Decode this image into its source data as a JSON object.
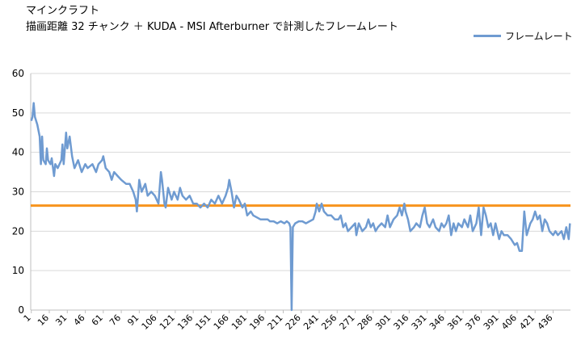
{
  "chart_data": {
    "type": "line",
    "title_lines": [
      "マインクラフト",
      "描画距離 32 チャンク ＋ KUDA - MSI Afterburner で計測したフレームレート"
    ],
    "xlabel": "",
    "ylabel": "",
    "ylim": [
      0,
      60
    ],
    "yticks": [
      0,
      10,
      20,
      30,
      40,
      50,
      60
    ],
    "xticks": [
      1,
      16,
      31,
      46,
      61,
      76,
      91,
      106,
      121,
      136,
      151,
      166,
      181,
      196,
      211,
      226,
      241,
      256,
      271,
      286,
      301,
      316,
      331,
      346,
      361,
      376,
      391,
      406,
      421,
      436
    ],
    "x_count": 450,
    "legend_position": "top-right",
    "colors": {
      "series": "#6f9bd1",
      "reference": "#f7941d",
      "gridline": "#d9d9d9",
      "axis": "#bfbfbf"
    },
    "series": [
      {
        "name": "フレームレート",
        "points": [
          [
            1,
            48
          ],
          [
            2,
            49
          ],
          [
            3,
            52.5
          ],
          [
            4,
            49
          ],
          [
            6,
            47
          ],
          [
            8,
            44
          ],
          [
            9,
            37
          ],
          [
            10,
            44
          ],
          [
            11,
            38
          ],
          [
            13,
            37
          ],
          [
            14,
            41
          ],
          [
            15,
            38
          ],
          [
            17,
            37
          ],
          [
            18,
            38.5
          ],
          [
            20,
            34
          ],
          [
            21,
            37
          ],
          [
            23,
            36
          ],
          [
            26,
            38
          ],
          [
            27,
            42
          ],
          [
            28,
            37
          ],
          [
            30,
            45
          ],
          [
            31,
            41
          ],
          [
            33,
            44
          ],
          [
            35,
            39
          ],
          [
            37,
            36
          ],
          [
            40,
            38
          ],
          [
            43,
            35
          ],
          [
            46,
            37
          ],
          [
            48,
            36
          ],
          [
            52,
            37
          ],
          [
            55,
            35
          ],
          [
            57,
            37
          ],
          [
            60,
            38
          ],
          [
            61,
            39
          ],
          [
            63,
            36
          ],
          [
            66,
            35
          ],
          [
            68,
            33
          ],
          [
            70,
            35
          ],
          [
            73,
            34
          ],
          [
            76,
            33
          ],
          [
            80,
            32
          ],
          [
            83,
            32
          ],
          [
            86,
            30
          ],
          [
            88,
            28
          ],
          [
            89,
            25
          ],
          [
            91,
            33
          ],
          [
            93,
            30
          ],
          [
            96,
            32
          ],
          [
            98,
            29
          ],
          [
            101,
            30
          ],
          [
            104,
            29
          ],
          [
            107,
            27
          ],
          [
            109,
            35
          ],
          [
            110,
            33
          ],
          [
            112,
            27
          ],
          [
            113,
            26
          ],
          [
            115,
            31
          ],
          [
            118,
            28
          ],
          [
            120,
            30
          ],
          [
            123,
            28
          ],
          [
            125,
            31
          ],
          [
            127,
            29
          ],
          [
            130,
            28
          ],
          [
            133,
            29
          ],
          [
            136,
            27
          ],
          [
            139,
            27
          ],
          [
            142,
            26
          ],
          [
            145,
            27
          ],
          [
            148,
            26
          ],
          [
            151,
            28
          ],
          [
            154,
            27
          ],
          [
            157,
            29
          ],
          [
            160,
            27
          ],
          [
            163,
            29
          ],
          [
            165,
            31
          ],
          [
            166,
            33
          ],
          [
            168,
            30
          ],
          [
            170,
            26
          ],
          [
            172,
            29
          ],
          [
            174,
            28
          ],
          [
            177,
            26
          ],
          [
            179,
            27
          ],
          [
            181,
            24
          ],
          [
            184,
            25
          ],
          [
            186,
            24
          ],
          [
            189,
            23.5
          ],
          [
            192,
            23
          ],
          [
            195,
            23
          ],
          [
            198,
            23
          ],
          [
            200,
            22.5
          ],
          [
            203,
            22.5
          ],
          [
            206,
            22
          ],
          [
            209,
            22.5
          ],
          [
            212,
            22
          ],
          [
            214,
            22.5
          ],
          [
            216,
            22
          ],
          [
            217,
            21
          ],
          [
            218,
            0
          ],
          [
            219,
            21
          ],
          [
            221,
            22
          ],
          [
            224,
            22.5
          ],
          [
            227,
            22.5
          ],
          [
            230,
            22
          ],
          [
            233,
            22.5
          ],
          [
            236,
            23
          ],
          [
            238,
            25
          ],
          [
            239,
            27
          ],
          [
            241,
            25
          ],
          [
            243,
            27
          ],
          [
            245,
            25
          ],
          [
            248,
            24
          ],
          [
            251,
            24
          ],
          [
            254,
            23
          ],
          [
            257,
            23
          ],
          [
            259,
            24
          ],
          [
            261,
            21
          ],
          [
            263,
            22
          ],
          [
            265,
            20
          ],
          [
            268,
            21
          ],
          [
            271,
            22
          ],
          [
            272,
            19
          ],
          [
            274,
            22
          ],
          [
            277,
            20
          ],
          [
            280,
            21
          ],
          [
            282,
            23
          ],
          [
            284,
            21
          ],
          [
            286,
            22
          ],
          [
            288,
            20
          ],
          [
            290,
            21
          ],
          [
            293,
            22
          ],
          [
            296,
            21
          ],
          [
            298,
            24
          ],
          [
            300,
            21
          ],
          [
            303,
            23
          ],
          [
            306,
            24
          ],
          [
            308,
            26
          ],
          [
            310,
            24
          ],
          [
            312,
            27
          ],
          [
            313,
            25
          ],
          [
            315,
            23
          ],
          [
            317,
            20
          ],
          [
            320,
            21
          ],
          [
            322,
            22
          ],
          [
            325,
            21
          ],
          [
            327,
            24
          ],
          [
            329,
            26
          ],
          [
            331,
            22
          ],
          [
            333,
            21
          ],
          [
            336,
            23
          ],
          [
            338,
            21
          ],
          [
            341,
            20
          ],
          [
            343,
            22
          ],
          [
            345,
            21
          ],
          [
            347,
            22
          ],
          [
            349,
            24
          ],
          [
            351,
            19
          ],
          [
            353,
            22
          ],
          [
            355,
            20
          ],
          [
            357,
            22
          ],
          [
            360,
            21
          ],
          [
            362,
            23
          ],
          [
            365,
            21
          ],
          [
            367,
            24
          ],
          [
            369,
            20
          ],
          [
            372,
            22
          ],
          [
            374,
            26
          ],
          [
            376,
            19
          ],
          [
            378,
            26
          ],
          [
            380,
            24
          ],
          [
            382,
            21
          ],
          [
            384,
            22
          ],
          [
            386,
            19
          ],
          [
            388,
            22
          ],
          [
            391,
            18
          ],
          [
            393,
            20
          ],
          [
            395,
            19
          ],
          [
            398,
            19
          ],
          [
            401,
            18
          ],
          [
            404,
            16.5
          ],
          [
            406,
            17
          ],
          [
            408,
            15
          ],
          [
            410,
            15
          ],
          [
            412,
            25
          ],
          [
            414,
            19
          ],
          [
            417,
            22
          ],
          [
            419,
            23
          ],
          [
            421,
            25
          ],
          [
            423,
            23
          ],
          [
            425,
            24
          ],
          [
            427,
            20
          ],
          [
            429,
            23
          ],
          [
            431,
            22
          ],
          [
            433,
            20
          ],
          [
            436,
            19
          ],
          [
            438,
            20
          ],
          [
            440,
            19
          ],
          [
            443,
            20
          ],
          [
            445,
            18
          ],
          [
            447,
            21
          ],
          [
            449,
            18
          ],
          [
            450,
            22
          ]
        ]
      },
      {
        "name": "",
        "reference_value": 26.5
      }
    ]
  }
}
